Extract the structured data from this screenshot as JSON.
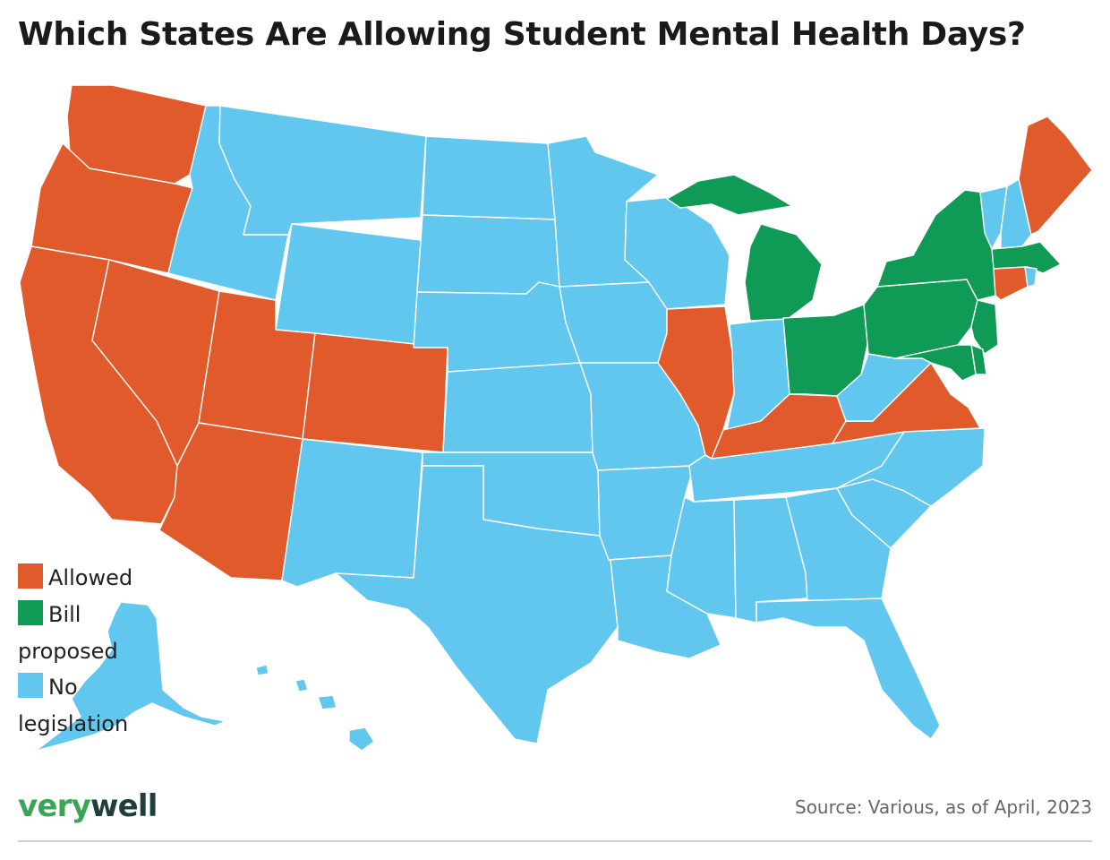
{
  "title": "Which States Are Allowing Student Mental Health Days?",
  "colors": {
    "allowed": "#e05a2b",
    "proposed": "#0f9a56",
    "none": "#62c7ee"
  },
  "legend": [
    {
      "key": "allowed",
      "label": "Allowed"
    },
    {
      "key": "proposed",
      "label": "Bill proposed"
    },
    {
      "key": "none",
      "label": "No legislation"
    }
  ],
  "categories": {
    "allowed": [
      "WA",
      "OR",
      "CA",
      "NV",
      "UT",
      "AZ",
      "CO",
      "IL",
      "KY",
      "VA",
      "ME",
      "CT"
    ],
    "proposed": [
      "MI",
      "OH",
      "PA",
      "NY",
      "NJ",
      "MD",
      "DE",
      "MA"
    ],
    "none": [
      "ID",
      "MT",
      "WY",
      "ND",
      "SD",
      "NE",
      "KS",
      "OK",
      "TX",
      "NM",
      "MN",
      "IA",
      "MO",
      "AR",
      "LA",
      "WI",
      "IN",
      "TN",
      "MS",
      "AL",
      "GA",
      "FL",
      "SC",
      "NC",
      "WV",
      "VT",
      "NH",
      "RI",
      "AK",
      "HI"
    ]
  },
  "source": "Source: Various, as of April, 2023",
  "brand": {
    "part1": "very",
    "part2": "well"
  }
}
